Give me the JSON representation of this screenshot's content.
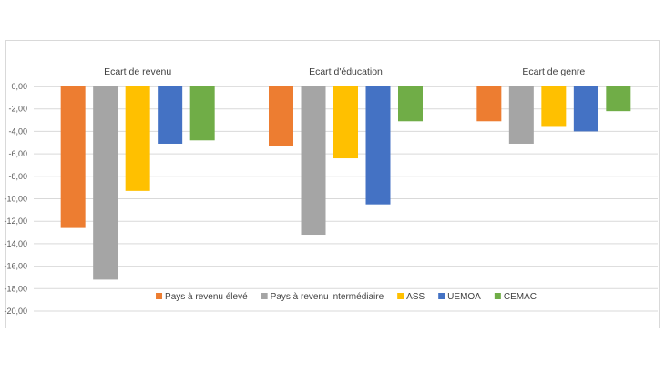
{
  "chart_data": {
    "type": "bar",
    "categories": [
      "Ecart de revenu",
      "Ecart d'éducation",
      "Ecart de genre"
    ],
    "series": [
      {
        "name": "Pays à revenu élevé",
        "color": "#ED7D31",
        "values": [
          -12.6,
          -5.3,
          -3.1
        ]
      },
      {
        "name": "Pays à revenu intermédiaire",
        "color": "#A5A5A5",
        "values": [
          -17.2,
          -13.2,
          -5.1
        ]
      },
      {
        "name": "ASS",
        "color": "#FFC000",
        "values": [
          -9.3,
          -6.4,
          -3.6
        ]
      },
      {
        "name": "UEMOA",
        "color": "#4472C4",
        "values": [
          -5.1,
          -10.5,
          -4.0
        ]
      },
      {
        "name": "CEMAC",
        "color": "#70AD47",
        "values": [
          -4.8,
          -3.1,
          -2.2
        ]
      }
    ],
    "ylim": [
      -20,
      0
    ],
    "yticks": [
      "0,00",
      "-2,00",
      "-4,00",
      "-6,00",
      "-8,00",
      "-10,00",
      "-12,00",
      "-14,00",
      "-16,00",
      "-18,00",
      "-20,00"
    ],
    "grid": true,
    "legend": "bottom"
  }
}
